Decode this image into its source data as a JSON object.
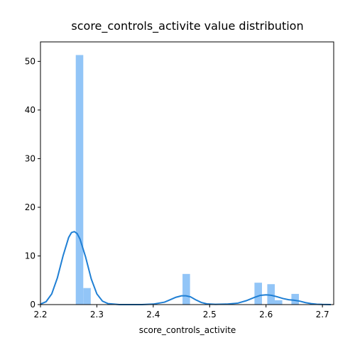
{
  "chart_data": {
    "type": "bar",
    "title": "score_controls_activite value distribution",
    "xlabel": "score_controls_activite",
    "ylabel": "",
    "xlim": [
      2.2,
      2.72
    ],
    "ylim": [
      0,
      54
    ],
    "x_ticks": [
      2.2,
      2.3,
      2.4,
      2.5,
      2.6,
      2.7
    ],
    "x_tick_labels": [
      "2.2",
      "2.3",
      "2.4",
      "2.5",
      "2.6",
      "2.7"
    ],
    "y_ticks": [
      0,
      10,
      20,
      30,
      40,
      50
    ],
    "y_tick_labels": [
      "0",
      "10",
      "20",
      "30",
      "40",
      "50"
    ],
    "grid": false,
    "bar_color": "#92c5f7",
    "kde_color": "#1f7fd4",
    "histogram": [
      {
        "x0": 2.2626,
        "x1": 2.2759,
        "value": 51.3
      },
      {
        "x0": 2.2759,
        "x1": 2.2892,
        "value": 3.4
      },
      {
        "x0": 2.4519,
        "x1": 2.4652,
        "value": 6.3
      },
      {
        "x0": 2.5795,
        "x1": 2.5928,
        "value": 4.5
      },
      {
        "x0": 2.6022,
        "x1": 2.6155,
        "value": 4.2
      },
      {
        "x0": 2.6155,
        "x1": 2.6288,
        "value": 0.9
      },
      {
        "x0": 2.645,
        "x1": 2.6583,
        "value": 2.2
      }
    ],
    "kde": {
      "x": [
        2.2,
        2.21,
        2.22,
        2.23,
        2.24,
        2.25,
        2.255,
        2.26,
        2.265,
        2.27,
        2.28,
        2.29,
        2.3,
        2.31,
        2.32,
        2.34,
        2.36,
        2.38,
        2.4,
        2.42,
        2.43,
        2.44,
        2.45,
        2.458,
        2.466,
        2.475,
        2.485,
        2.495,
        2.51,
        2.53,
        2.55,
        2.565,
        2.58,
        2.59,
        2.6,
        2.61,
        2.62,
        2.63,
        2.64,
        2.65,
        2.66,
        2.67,
        2.68,
        2.69,
        2.7,
        2.715
      ],
      "y": [
        0.1,
        0.6,
        2.2,
        5.5,
        10.0,
        13.8,
        14.8,
        15.0,
        14.6,
        13.5,
        9.8,
        5.3,
        2.2,
        0.7,
        0.2,
        0.0,
        0.0,
        0.0,
        0.1,
        0.5,
        1.0,
        1.5,
        1.8,
        1.8,
        1.6,
        1.0,
        0.45,
        0.15,
        0.05,
        0.1,
        0.3,
        0.8,
        1.5,
        1.9,
        2.0,
        1.9,
        1.6,
        1.25,
        1.0,
        0.9,
        0.7,
        0.4,
        0.2,
        0.08,
        0.03,
        0.0
      ]
    }
  }
}
